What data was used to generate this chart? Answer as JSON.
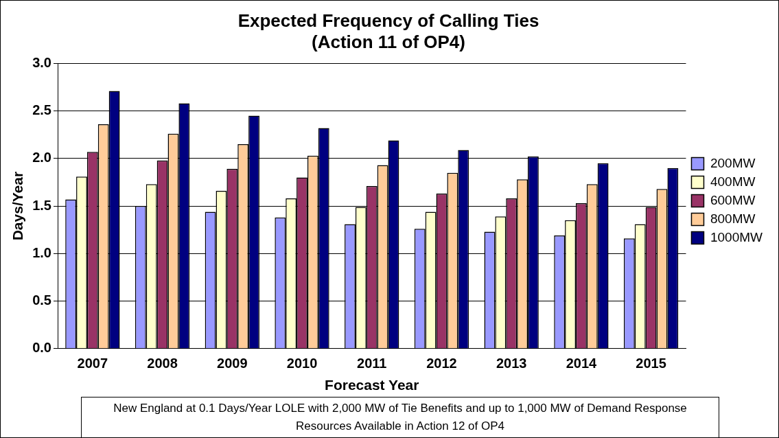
{
  "chart_data": {
    "type": "bar",
    "title": [
      "Expected Frequency of Calling Ties",
      "(Action 11 of OP4)"
    ],
    "xlabel": "Forecast Year",
    "ylabel": "Days/Year",
    "categories": [
      "2007",
      "2008",
      "2009",
      "2010",
      "2011",
      "2012",
      "2013",
      "2014",
      "2015"
    ],
    "series": [
      {
        "name": "200MW",
        "color": "#9999ff",
        "values": [
          1.57,
          1.5,
          1.44,
          1.38,
          1.31,
          1.26,
          1.23,
          1.19,
          1.16
        ]
      },
      {
        "name": "400MW",
        "color": "#ffffcc",
        "values": [
          1.81,
          1.73,
          1.66,
          1.58,
          1.49,
          1.44,
          1.39,
          1.35,
          1.31
        ]
      },
      {
        "name": "600MW",
        "color": "#993366",
        "values": [
          2.07,
          1.98,
          1.89,
          1.8,
          1.71,
          1.63,
          1.58,
          1.53,
          1.49
        ]
      },
      {
        "name": "800MW",
        "color": "#ffcc99",
        "values": [
          2.36,
          2.26,
          2.15,
          2.03,
          1.93,
          1.85,
          1.78,
          1.73,
          1.68
        ]
      },
      {
        "name": "1000MW",
        "color": "#000080",
        "values": [
          2.71,
          2.58,
          2.45,
          2.32,
          2.19,
          2.09,
          2.02,
          1.95,
          1.9
        ]
      }
    ],
    "ylim": [
      0,
      3
    ],
    "yticks": [
      {
        "value": 0,
        "label": "0.0"
      },
      0.5,
      {
        "value": 1,
        "label": "1.0"
      },
      1.5,
      {
        "value": 2,
        "label": "2.0"
      },
      2.5,
      {
        "value": 3,
        "label": "3.0"
      }
    ],
    "grid": "y",
    "legend": "right",
    "annotations": [
      "New England at 0.1 Days/Year LOLE with 2,000 MW of Tie Benefits and up to 1,000 MW of Demand Response Resources Available in Action 12 of OP4"
    ]
  }
}
